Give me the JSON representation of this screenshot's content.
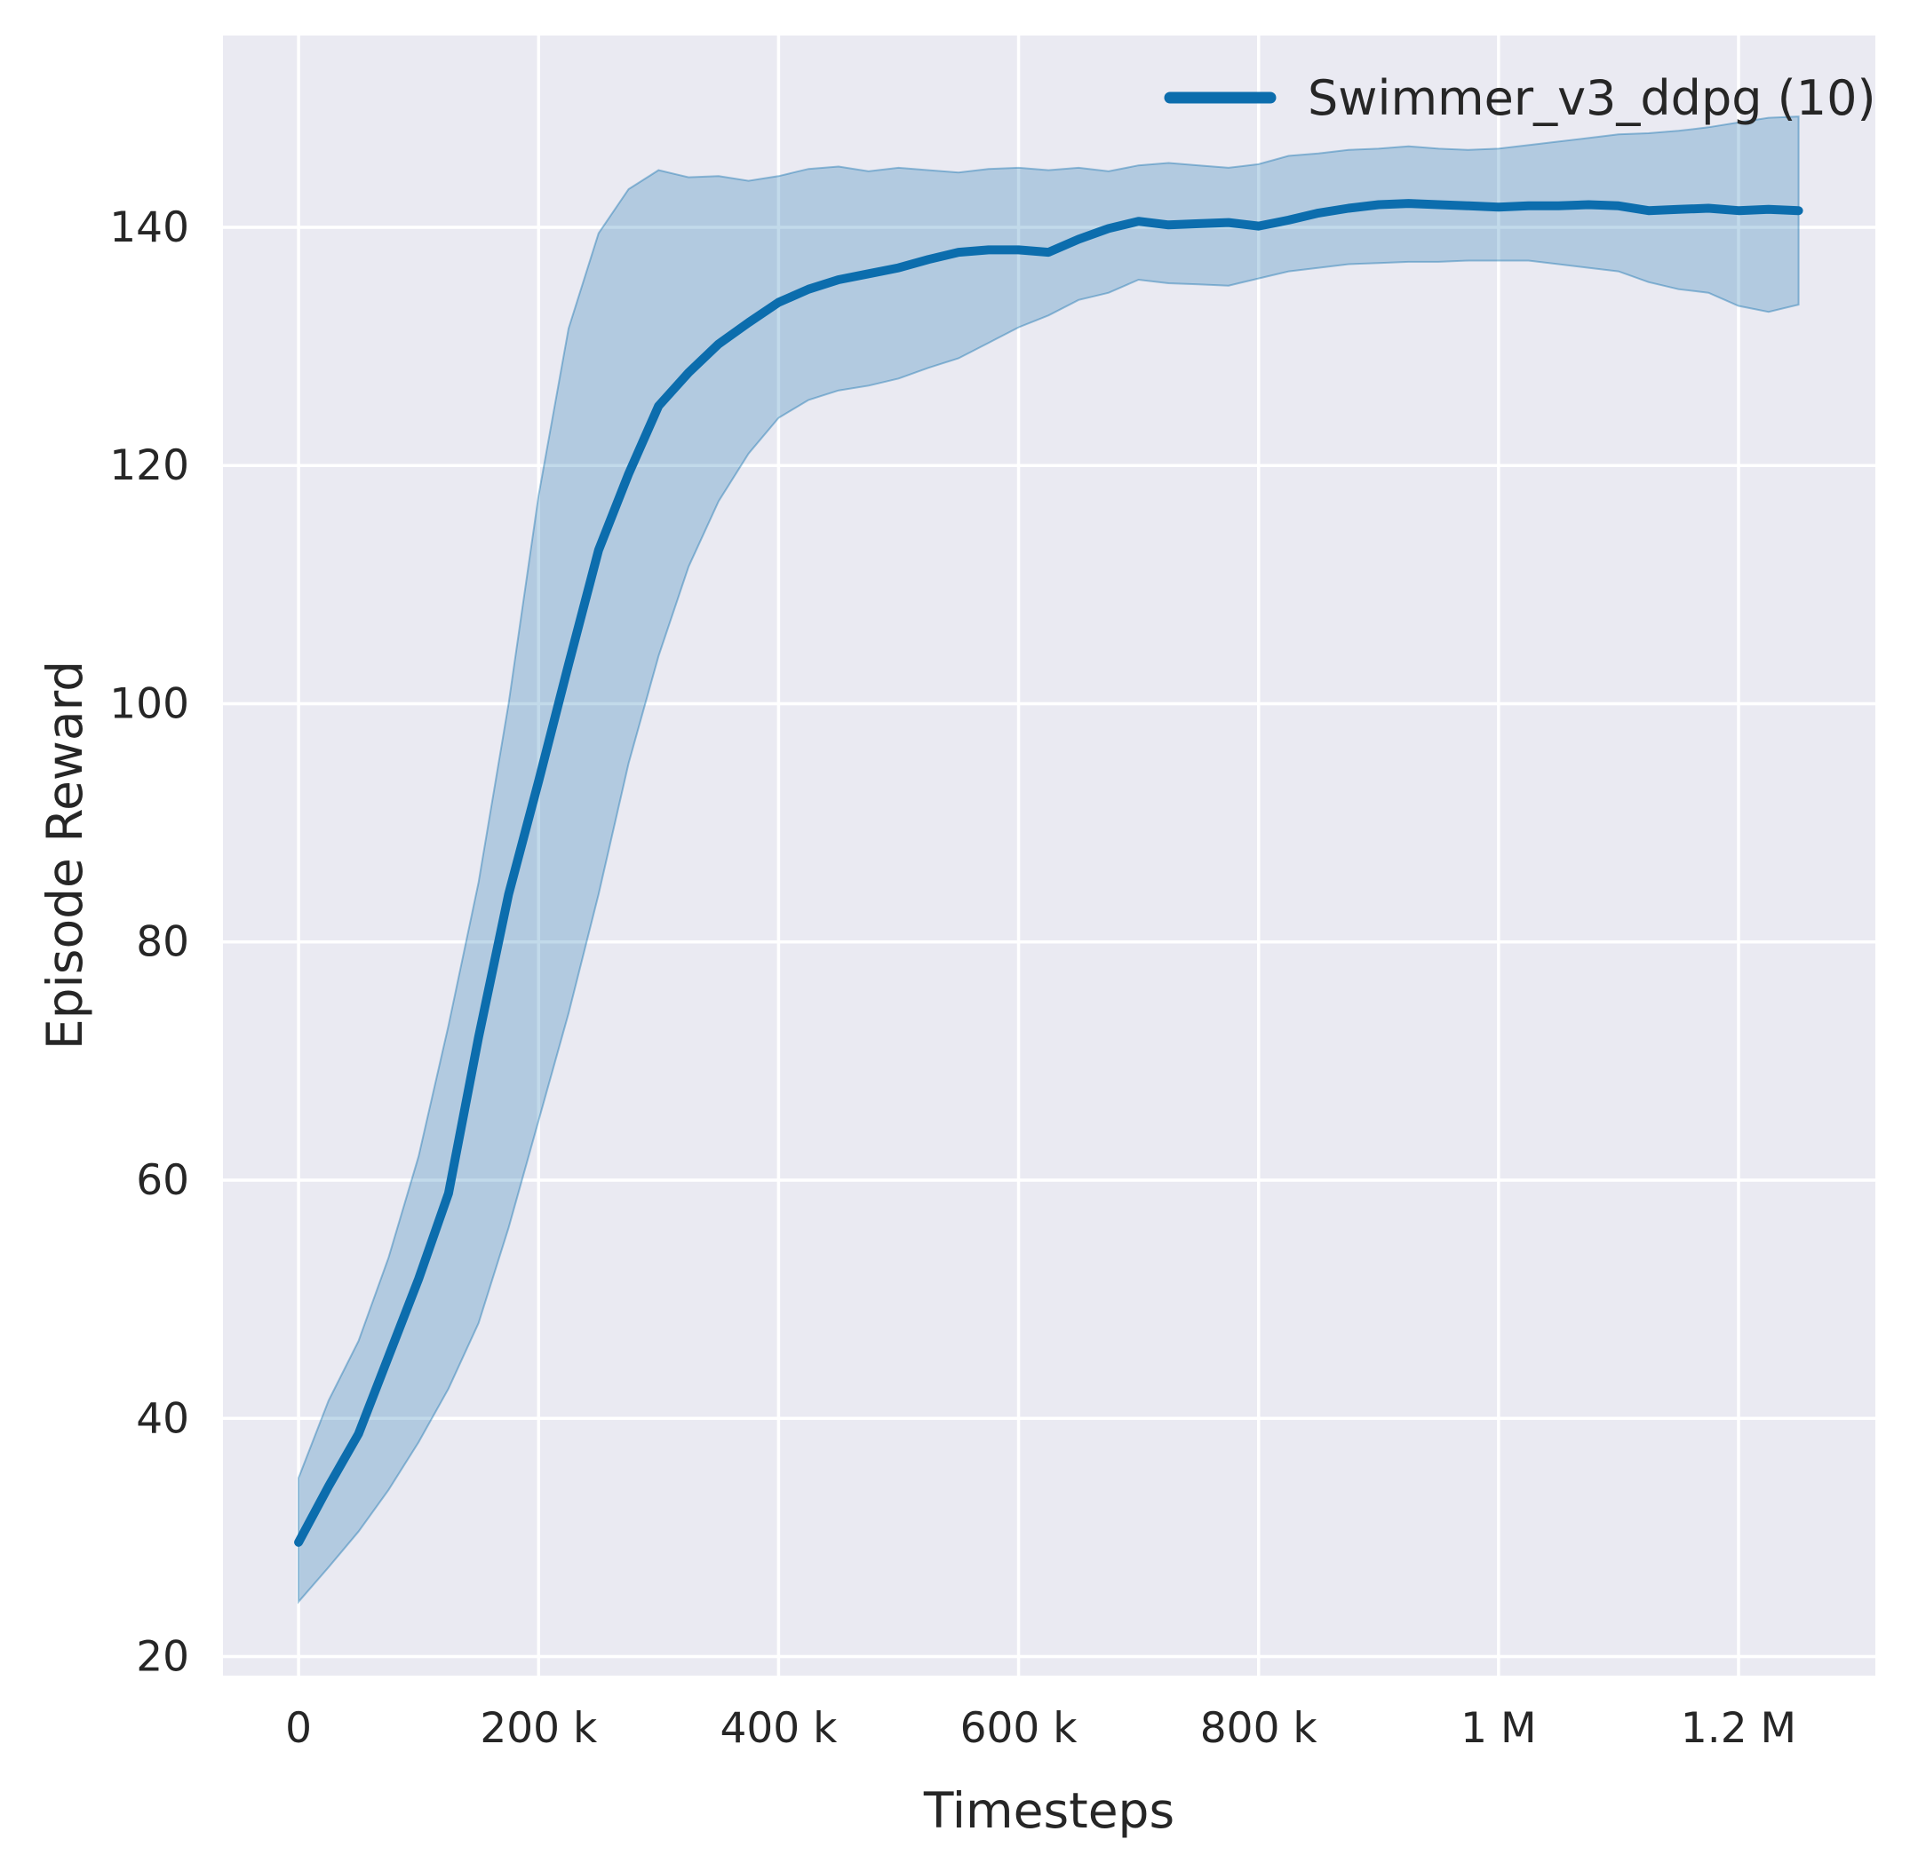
{
  "figure": {
    "background": "#ffffff",
    "axes_background": "#eaeaf2",
    "grid_color": "#ffffff",
    "text_color": "#262626"
  },
  "chart_data": {
    "type": "line",
    "title": "",
    "xlabel": "Timesteps",
    "ylabel": "Episode Reward",
    "grid": true,
    "legend_position": "upper right",
    "legend": [
      {
        "label": "Swimmer_v3_ddpg (10)",
        "color": "#0c6dad"
      }
    ],
    "xlim": [
      -63000,
      1314000
    ],
    "ylim": [
      18.4,
      156.1
    ],
    "x_ticks": [
      {
        "value": 0,
        "label": "0"
      },
      {
        "value": 200000,
        "label": "200 k"
      },
      {
        "value": 400000,
        "label": "400 k"
      },
      {
        "value": 600000,
        "label": "600 k"
      },
      {
        "value": 800000,
        "label": "800 k"
      },
      {
        "value": 1000000,
        "label": "1 M"
      },
      {
        "value": 1200000,
        "label": "1.2 M"
      }
    ],
    "y_ticks": [
      {
        "value": 20,
        "label": "20"
      },
      {
        "value": 40,
        "label": "40"
      },
      {
        "value": 60,
        "label": "60"
      },
      {
        "value": 80,
        "label": "80"
      },
      {
        "value": 100,
        "label": "100"
      },
      {
        "value": 120,
        "label": "120"
      },
      {
        "value": 140,
        "label": "140"
      }
    ],
    "series": [
      {
        "name": "Swimmer_v3_ddpg (10)",
        "color": "#0c6dad",
        "band_fill": "rgba(12,109,173,0.25)",
        "band_edge": "rgba(12,109,173,0.4)",
        "x": [
          0,
          25000,
          50000,
          75000,
          100000,
          125000,
          150000,
          175000,
          200000,
          225000,
          250000,
          275000,
          300000,
          325000,
          350000,
          375000,
          400000,
          425000,
          450000,
          475000,
          500000,
          525000,
          550000,
          575000,
          600000,
          625000,
          650000,
          675000,
          700000,
          725000,
          750000,
          775000,
          800000,
          825000,
          850000,
          875000,
          900000,
          925000,
          950000,
          975000,
          1000000,
          1025000,
          1050000,
          1075000,
          1100000,
          1125000,
          1150000,
          1175000,
          1200000,
          1225000,
          1250000
        ],
        "mean": [
          29.6,
          34.3,
          38.7,
          45.2,
          51.7,
          58.9,
          72.0,
          84.0,
          93.5,
          103.3,
          112.9,
          119.3,
          125.0,
          127.8,
          130.2,
          132.0,
          133.7,
          134.8,
          135.6,
          136.1,
          136.6,
          137.3,
          137.9,
          138.1,
          138.1,
          137.9,
          139.0,
          139.9,
          140.5,
          140.2,
          140.3,
          140.4,
          140.1,
          140.6,
          141.2,
          141.6,
          141.9,
          142.0,
          141.9,
          141.8,
          141.7,
          141.8,
          141.8,
          141.9,
          141.8,
          141.4,
          141.5,
          141.6,
          141.4,
          141.5,
          141.4
        ],
        "band_low": [
          24.6,
          27.5,
          30.5,
          34.0,
          38.0,
          42.5,
          48.0,
          56.0,
          65.0,
          74.0,
          84.0,
          95.0,
          104.0,
          111.5,
          117.0,
          121.0,
          124.0,
          125.5,
          126.3,
          126.7,
          127.3,
          128.2,
          129.0,
          130.3,
          131.6,
          132.6,
          133.9,
          134.5,
          135.6,
          135.3,
          135.2,
          135.1,
          135.7,
          136.3,
          136.6,
          136.9,
          137.0,
          137.1,
          137.1,
          137.2,
          137.2,
          137.2,
          136.9,
          136.6,
          136.3,
          135.4,
          134.8,
          134.5,
          133.4,
          132.9,
          133.5
        ],
        "band_high": [
          35.0,
          41.5,
          46.5,
          53.5,
          62.0,
          73.0,
          85.0,
          100.0,
          117.5,
          131.5,
          139.5,
          143.2,
          144.8,
          144.2,
          144.3,
          143.9,
          144.3,
          144.9,
          145.1,
          144.7,
          145.0,
          144.8,
          144.6,
          144.9,
          145.0,
          144.8,
          145.0,
          144.7,
          145.2,
          145.4,
          145.2,
          145.0,
          145.3,
          146.0,
          146.2,
          146.5,
          146.6,
          146.8,
          146.6,
          146.5,
          146.6,
          146.9,
          147.2,
          147.5,
          147.8,
          147.9,
          148.1,
          148.4,
          148.8,
          149.2,
          149.3
        ]
      }
    ]
  }
}
